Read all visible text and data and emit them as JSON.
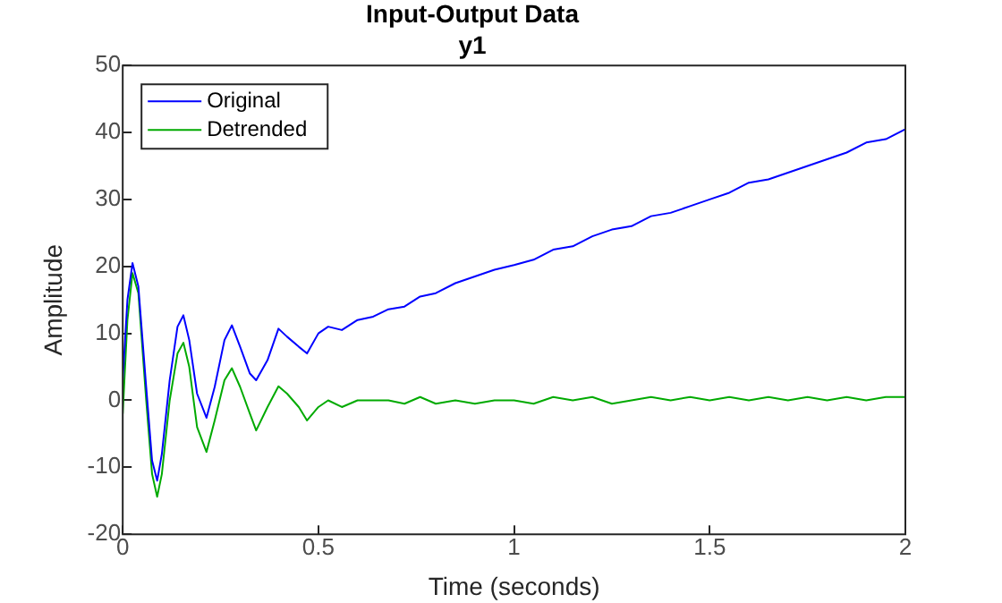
{
  "chart_data": {
    "type": "line",
    "title": "Input-Output Data",
    "subtitle": "y1",
    "xlabel": "Time (seconds)",
    "ylabel": "Amplitude",
    "x": [
      0,
      0.012,
      0.025,
      0.04,
      0.06,
      0.075,
      0.088,
      0.1,
      0.12,
      0.14,
      0.155,
      0.17,
      0.19,
      0.214,
      0.235,
      0.26,
      0.279,
      0.3,
      0.325,
      0.341,
      0.37,
      0.398,
      0.42,
      0.45,
      0.471,
      0.5,
      0.525,
      0.56,
      0.6,
      0.64,
      0.679,
      0.72,
      0.76,
      0.8,
      0.85,
      0.9,
      0.95,
      1.0,
      1.05,
      1.1,
      1.15,
      1.2,
      1.25,
      1.3,
      1.35,
      1.4,
      1.45,
      1.5,
      1.55,
      1.6,
      1.65,
      1.7,
      1.75,
      1.8,
      1.85,
      1.9,
      1.95,
      2.0
    ],
    "series": [
      {
        "name": "Original",
        "color": "#0000ff",
        "values": [
          3,
          15,
          20.5,
          17,
          2,
          -9,
          -12,
          -8,
          3,
          11,
          12.7,
          9,
          1,
          -2.6,
          2,
          9,
          11.2,
          8,
          4,
          3,
          6,
          10.7,
          9.5,
          8,
          7,
          10,
          11,
          10.5,
          12,
          12.5,
          13.6,
          14,
          15.5,
          16,
          17.5,
          18.5,
          19.5,
          20.2,
          21,
          22.5,
          23,
          24.5,
          25.5,
          26,
          27.5,
          28,
          29,
          30,
          31,
          32.5,
          33,
          34,
          35,
          36,
          37,
          38.5,
          39,
          40.5
        ]
      },
      {
        "name": "Detrended",
        "color": "#00aa00",
        "values": [
          -2,
          12,
          19,
          16,
          0,
          -11,
          -14.4,
          -11,
          0,
          7,
          8.6,
          5,
          -4,
          -7.7,
          -3,
          3,
          4.8,
          2,
          -2,
          -4.5,
          -1,
          2.1,
          1,
          -1,
          -3,
          -1,
          0,
          -1,
          0,
          0,
          0,
          -0.5,
          0.5,
          -0.5,
          0,
          -0.5,
          0,
          0,
          -0.5,
          0.5,
          0,
          0.5,
          -0.5,
          0,
          0.5,
          0,
          0.5,
          0,
          0.5,
          0,
          0.5,
          0,
          0.5,
          0,
          0.5,
          0,
          0.5,
          0.5
        ]
      }
    ],
    "xlim": [
      0,
      2
    ],
    "xticks": [
      0,
      0.5,
      1,
      1.5,
      2
    ],
    "ylim": [
      -20,
      50
    ],
    "yticks": [
      -20,
      -10,
      0,
      10,
      20,
      30,
      40,
      50
    ],
    "grid": false,
    "legend": "top left",
    "marker": "none",
    "line_style": "solid"
  }
}
